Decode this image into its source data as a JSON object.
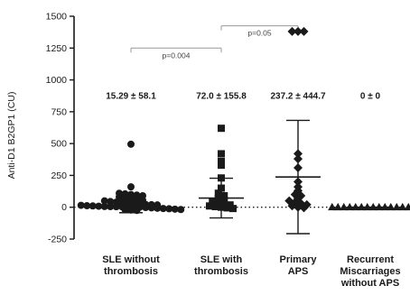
{
  "chart_data": {
    "type": "scatter",
    "title": "",
    "ylabel": "Anti-D1 B2GP1 (CU)",
    "xlabel": "",
    "ylim": [
      -250,
      1500
    ],
    "yticks": [
      -250,
      0,
      250,
      500,
      750,
      1000,
      1250,
      1500
    ],
    "reference_line_y": 0,
    "grid": false,
    "groups": [
      {
        "label_lines": [
          "SLE without",
          "thrombosis"
        ],
        "stat": "15.29 ± 58.1",
        "marker": "circle",
        "mean": 15.29,
        "sd": 58.1,
        "values": [
          495,
          160,
          110,
          105,
          100,
          95,
          90,
          80,
          75,
          70,
          60,
          55,
          50,
          45,
          40,
          35,
          30,
          28,
          25,
          22,
          20,
          18,
          15,
          12,
          10,
          8,
          6,
          5,
          4,
          3,
          2,
          1,
          0,
          -2,
          -5,
          -8,
          -10,
          -12,
          -15,
          -18,
          -20,
          -22,
          -25
        ]
      },
      {
        "label_lines": [
          "SLE with",
          "thrombosis"
        ],
        "stat": "72.0 ± 155.8",
        "marker": "square",
        "mean": 72.0,
        "sd": 155.8,
        "values": [
          620,
          420,
          360,
          330,
          230,
          150,
          110,
          90,
          70,
          55,
          45,
          35,
          25,
          18,
          10,
          5,
          0,
          -5,
          -10
        ]
      },
      {
        "label_lines": [
          "Primary",
          "APS"
        ],
        "stat": "237.2 ± 444.7",
        "marker": "diamond",
        "mean": 237.2,
        "sd": 444.7,
        "values": [
          1380,
          1380,
          1380,
          420,
          380,
          310,
          200,
          160,
          130,
          100,
          90,
          70,
          50,
          40,
          30,
          20,
          10,
          0,
          -5
        ]
      },
      {
        "label_lines": [
          "Recurrent",
          "Miscarriages",
          "without APS"
        ],
        "stat": "0 ± 0",
        "marker": "triangle",
        "mean": 0,
        "sd": 0,
        "values": [
          0,
          0,
          0,
          0,
          0,
          0,
          0,
          0,
          0,
          0,
          0,
          0,
          0,
          0
        ]
      }
    ],
    "comparisons": [
      {
        "from": 0,
        "to": 1,
        "label": "p=0.004"
      },
      {
        "from": 1,
        "to": 2,
        "label": "p=0.05"
      }
    ],
    "colors": {
      "points": "#1a1a1a",
      "axis": "#1a1a1a",
      "bracket": "#999999"
    }
  }
}
